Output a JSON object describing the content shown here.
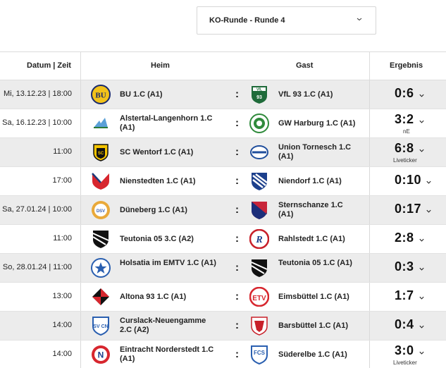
{
  "round_select": {
    "value": "KO-Runde - Runde 4"
  },
  "headers": {
    "date": "Datum | Zeit",
    "home": "Heim",
    "away": "Gast",
    "result": "Ergebnis"
  },
  "colors": {
    "row_alt": "#ececec",
    "border": "#dcdcdc",
    "text": "#222222"
  },
  "matches": [
    {
      "date": "Mi, 13.12.23 | 18:00",
      "home": "BU 1.C (A1)",
      "home_logo": "bu-crest-icon",
      "away": "VfL 93 1.C (A1)",
      "away_logo": "vfl93-crest-icon",
      "score": "0:6",
      "sub": ""
    },
    {
      "date": "Sa, 16.12.23 | 10:00",
      "home": "Alstertal-Langenhorn 1.C (A1)",
      "home_logo": "alstertal-crest-icon",
      "away": "GW Harburg 1.C (A1)",
      "away_logo": "gw-harburg-crest-icon",
      "score": "3:2",
      "sub": "nE"
    },
    {
      "date": "11:00",
      "home": "SC Wentorf 1.C (A1)",
      "home_logo": "wentorf-crest-icon",
      "away": "Union Tornesch 1.C (A1)",
      "away_logo": "tornesch-crest-icon",
      "score": "6:8",
      "sub": "Liveticker"
    },
    {
      "date": "17:00",
      "home": "Nienstedten 1.C (A1)",
      "home_logo": "nienstedten-crest-icon",
      "away": "Niendorf 1.C (A1)",
      "away_logo": "niendorf-crest-icon",
      "score": "0:10",
      "sub": ""
    },
    {
      "date": "Sa, 27.01.24 | 10:00",
      "home": "Düneberg 1.C (A1)",
      "home_logo": "dueneberg-crest-icon",
      "away": "Sternschanze 1.C (A1)",
      "away_logo": "sternschanze-crest-icon",
      "score": "0:17",
      "sub": ""
    },
    {
      "date": "11:00",
      "home": "Teutonia 05 3.C (A2)",
      "home_logo": "teutonia-crest-icon",
      "away": "Rahlstedt 1.C (A1)",
      "away_logo": "rahlstedt-crest-icon",
      "score": "2:8",
      "sub": ""
    },
    {
      "date": "So, 28.01.24 | 11:00",
      "home": "Holsatia im EMTV 1.C (A1)",
      "home_logo": "holsatia-crest-icon",
      "away": "Teutonia 05 1.C (A1)",
      "away_logo": "teutonia-crest-icon",
      "score": "0:3",
      "sub": ""
    },
    {
      "date": "13:00",
      "home": "Altona 93 1.C (A1)",
      "home_logo": "altona-crest-icon",
      "away": "Eimsbüttel 1.C (A1)",
      "away_logo": "eimsbuettel-crest-icon",
      "score": "1:7",
      "sub": ""
    },
    {
      "date": "14:00",
      "home": "Curslack-Neuengamme 2.C (A2)",
      "home_logo": "curslack-crest-icon",
      "away": "Barsbüttel 1.C (A1)",
      "away_logo": "barsbuettel-crest-icon",
      "score": "0:4",
      "sub": ""
    },
    {
      "date": "14:00",
      "home": "Eintracht Norderstedt 1.C (A1)",
      "home_logo": "norderstedt-crest-icon",
      "away": "Süderelbe 1.C (A1)",
      "away_logo": "suederelbe-crest-icon",
      "score": "3:0",
      "sub": "Liveticker"
    }
  ]
}
